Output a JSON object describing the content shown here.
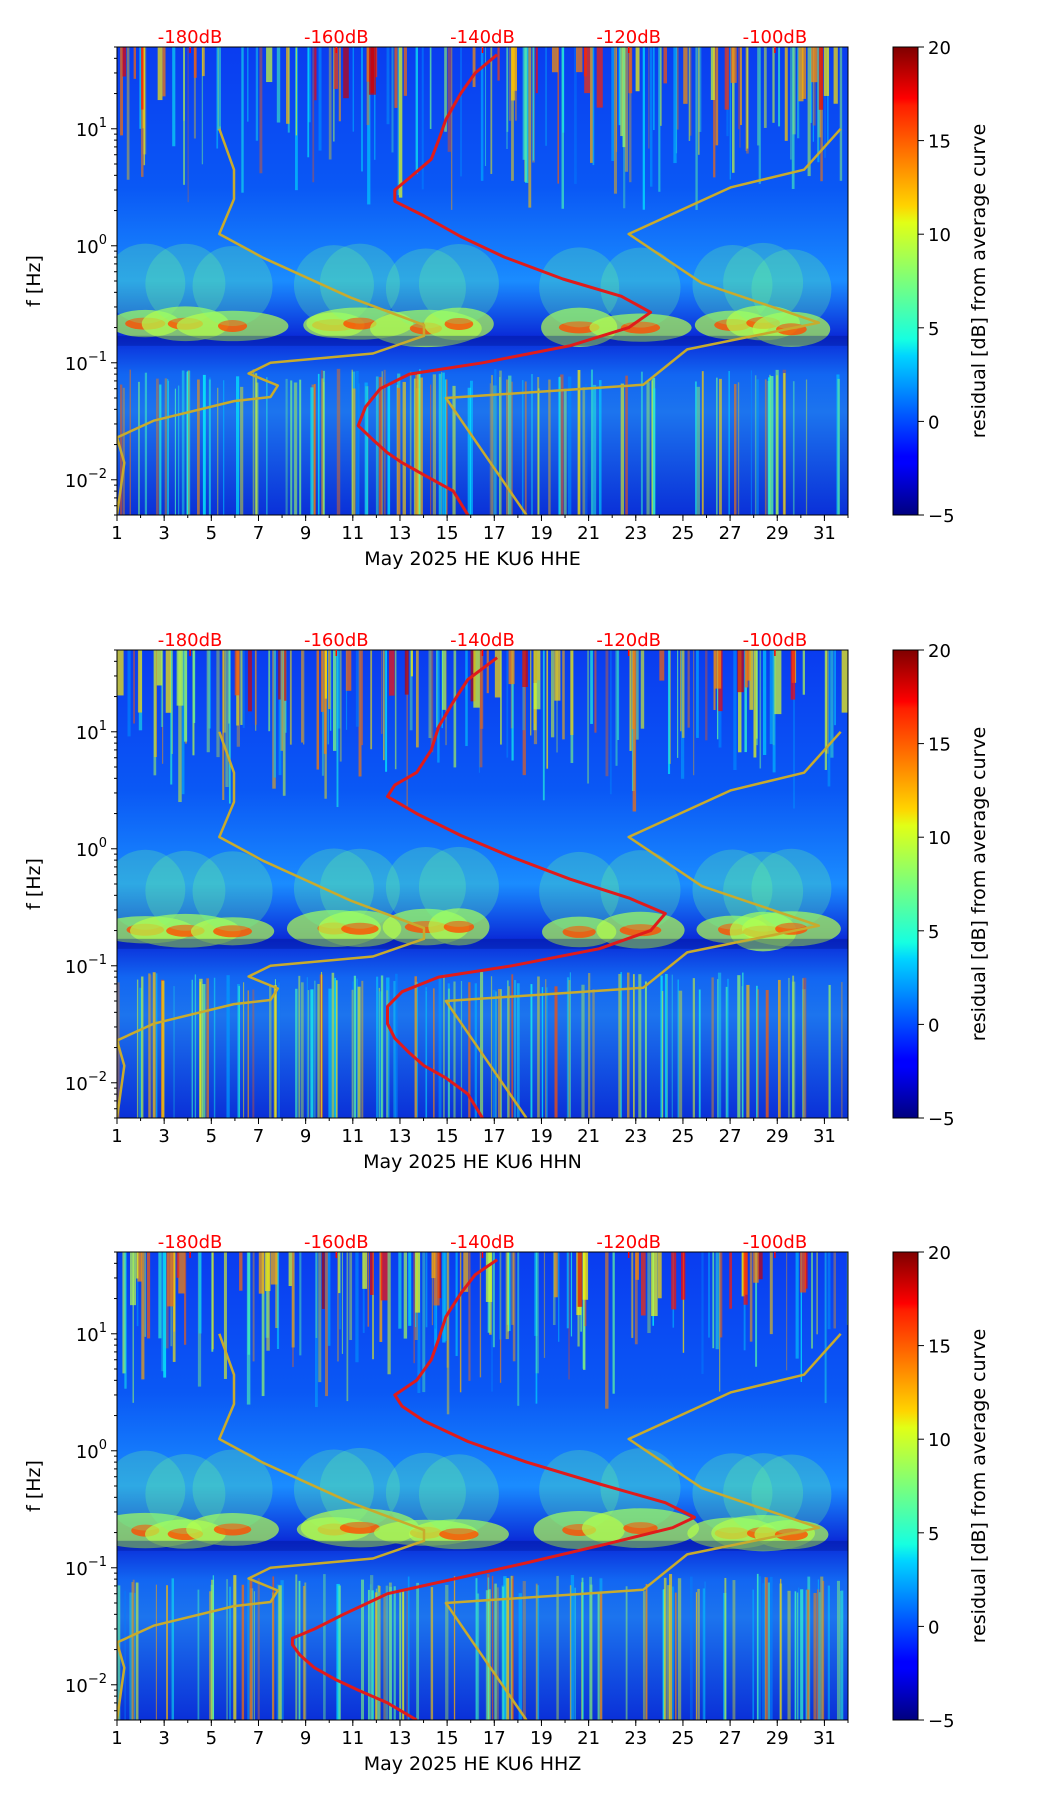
{
  "chart_data": [
    {
      "type": "heatmap",
      "station": "HE KU6",
      "channel": "HHE",
      "xlabel": "May 2025 HE KU6  HHE",
      "ylabel": "f [Hz]",
      "colorbar_label": "residual [dB] from average curve",
      "colorbar_ticks": [
        -5,
        0,
        5,
        10,
        15,
        20
      ],
      "colorbar_range": [
        -5,
        20
      ],
      "colormap": "jet",
      "x_range_days": [
        1,
        32
      ],
      "x_ticks": [
        "1",
        "3",
        "5",
        "7",
        "9",
        "11",
        "13",
        "15",
        "17",
        "19",
        "21",
        "23",
        "25",
        "27",
        "29",
        "31"
      ],
      "y_range_hz": [
        0.005,
        50
      ],
      "y_ticks": [
        {
          "value": 0.01,
          "base": "10",
          "exp": "−2"
        },
        {
          "value": 0.1,
          "base": "10",
          "exp": "−1"
        },
        {
          "value": 1,
          "base": "10",
          "exp": "0"
        },
        {
          "value": 10,
          "base": "10",
          "exp": "1"
        }
      ],
      "top_db_ticks": [
        "-180dB",
        "-160dB",
        "-140dB",
        "-120dB",
        "-100dB"
      ],
      "top_db_range": [
        -190,
        -90
      ],
      "series": [
        {
          "name": "low noise model",
          "color": "#c8ab2d",
          "points_db_hz": [
            [
              -190,
              0.005
            ],
            [
              -189,
              0.014
            ],
            [
              -190,
              0.023
            ],
            [
              -185,
              0.032
            ],
            [
              -174,
              0.047
            ],
            [
              -169,
              0.051
            ],
            [
              -168,
              0.064
            ],
            [
              -172,
              0.081
            ],
            [
              -169,
              0.1
            ],
            [
              -155,
              0.12
            ],
            [
              -148,
              0.17
            ],
            [
              -148,
              0.21
            ],
            [
              -158,
              0.36
            ],
            [
              -170,
              0.79
            ],
            [
              -176,
              1.26
            ],
            [
              -174,
              2.51
            ],
            [
              -174,
              4.47
            ],
            [
              -176,
              10
            ]
          ]
        },
        {
          "name": "high noise model",
          "color": "#c8ab2d",
          "points_db_hz": [
            [
              -134,
              0.005
            ],
            [
              -145,
              0.05
            ],
            [
              -118,
              0.065
            ],
            [
              -112,
              0.13
            ],
            [
              -94,
              0.22
            ],
            [
              -110,
              0.48
            ],
            [
              -120,
              1.26
            ],
            [
              -106,
              3.16
            ],
            [
              -96,
              4.47
            ],
            [
              -91,
              10
            ]
          ]
        },
        {
          "name": "average curve",
          "color": "#e01b1b",
          "points_db_hz": [
            [
              -142,
              0.005
            ],
            [
              -144,
              0.008
            ],
            [
              -148,
              0.011
            ],
            [
              -151,
              0.014
            ],
            [
              -153,
              0.017
            ],
            [
              -155,
              0.022
            ],
            [
              -157,
              0.029
            ],
            [
              -156,
              0.042
            ],
            [
              -154,
              0.06
            ],
            [
              -150,
              0.08
            ],
            [
              -140,
              0.1
            ],
            [
              -128,
              0.14
            ],
            [
              -120,
              0.2
            ],
            [
              -117,
              0.27
            ],
            [
              -121,
              0.37
            ],
            [
              -129,
              0.52
            ],
            [
              -137,
              0.8
            ],
            [
              -143,
              1.2
            ],
            [
              -148,
              1.8
            ],
            [
              -152,
              2.4
            ],
            [
              -152,
              3.0
            ],
            [
              -150,
              3.8
            ],
            [
              -147,
              5.5
            ],
            [
              -146,
              8
            ],
            [
              -145,
              12
            ],
            [
              -143,
              20
            ],
            [
              -141,
              30
            ],
            [
              -138,
              43
            ]
          ]
        }
      ]
    },
    {
      "type": "heatmap",
      "station": "HE KU6",
      "channel": "HHN",
      "xlabel": "May 2025 HE KU6  HHN",
      "ylabel": "f [Hz]",
      "colorbar_label": "residual [dB] from average curve",
      "colorbar_ticks": [
        -5,
        0,
        5,
        10,
        15,
        20
      ],
      "colorbar_range": [
        -5,
        20
      ],
      "colormap": "jet",
      "x_range_days": [
        1,
        32
      ],
      "x_ticks": [
        "1",
        "3",
        "5",
        "7",
        "9",
        "11",
        "13",
        "15",
        "17",
        "19",
        "21",
        "23",
        "25",
        "27",
        "29",
        "31"
      ],
      "y_range_hz": [
        0.005,
        50
      ],
      "y_ticks": [
        {
          "value": 0.01,
          "base": "10",
          "exp": "−2"
        },
        {
          "value": 0.1,
          "base": "10",
          "exp": "−1"
        },
        {
          "value": 1,
          "base": "10",
          "exp": "0"
        },
        {
          "value": 10,
          "base": "10",
          "exp": "1"
        }
      ],
      "top_db_ticks": [
        "-180dB",
        "-160dB",
        "-140dB",
        "-120dB",
        "-100dB"
      ],
      "top_db_range": [
        -190,
        -90
      ],
      "series": [
        {
          "name": "low noise model",
          "color": "#c8ab2d",
          "points_db_hz": [
            [
              -190,
              0.005
            ],
            [
              -189,
              0.014
            ],
            [
              -190,
              0.023
            ],
            [
              -185,
              0.032
            ],
            [
              -174,
              0.047
            ],
            [
              -169,
              0.051
            ],
            [
              -168,
              0.064
            ],
            [
              -172,
              0.081
            ],
            [
              -169,
              0.1
            ],
            [
              -155,
              0.12
            ],
            [
              -148,
              0.17
            ],
            [
              -148,
              0.21
            ],
            [
              -158,
              0.36
            ],
            [
              -170,
              0.79
            ],
            [
              -176,
              1.26
            ],
            [
              -174,
              2.51
            ],
            [
              -174,
              4.47
            ],
            [
              -176,
              10
            ]
          ]
        },
        {
          "name": "high noise model",
          "color": "#c8ab2d",
          "points_db_hz": [
            [
              -134,
              0.005
            ],
            [
              -145,
              0.05
            ],
            [
              -118,
              0.065
            ],
            [
              -112,
              0.13
            ],
            [
              -94,
              0.22
            ],
            [
              -110,
              0.48
            ],
            [
              -120,
              1.26
            ],
            [
              -106,
              3.16
            ],
            [
              -96,
              4.47
            ],
            [
              -91,
              10
            ]
          ]
        },
        {
          "name": "average curve",
          "color": "#e01b1b",
          "points_db_hz": [
            [
              -140,
              0.005
            ],
            [
              -142,
              0.008
            ],
            [
              -145,
              0.011
            ],
            [
              -148,
              0.014
            ],
            [
              -150,
              0.018
            ],
            [
              -152,
              0.024
            ],
            [
              -153,
              0.032
            ],
            [
              -153,
              0.045
            ],
            [
              -151,
              0.06
            ],
            [
              -146,
              0.08
            ],
            [
              -136,
              0.1
            ],
            [
              -124,
              0.14
            ],
            [
              -117,
              0.2
            ],
            [
              -115,
              0.28
            ],
            [
              -120,
              0.38
            ],
            [
              -128,
              0.55
            ],
            [
              -136,
              0.85
            ],
            [
              -143,
              1.3
            ],
            [
              -149,
              2.0
            ],
            [
              -153,
              2.8
            ],
            [
              -152,
              3.5
            ],
            [
              -149,
              4.5
            ],
            [
              -147,
              7
            ],
            [
              -146,
              11
            ],
            [
              -144,
              18
            ],
            [
              -142,
              28
            ],
            [
              -138,
              43
            ]
          ]
        }
      ]
    },
    {
      "type": "heatmap",
      "station": "HE KU6",
      "channel": "HHZ",
      "xlabel": "May 2025 HE KU6  HHZ",
      "ylabel": "f [Hz]",
      "colorbar_label": "residual [dB] from average curve",
      "colorbar_ticks": [
        -5,
        0,
        5,
        10,
        15,
        20
      ],
      "colorbar_range": [
        -5,
        20
      ],
      "colormap": "jet",
      "x_range_days": [
        1,
        32
      ],
      "x_ticks": [
        "1",
        "3",
        "5",
        "7",
        "9",
        "11",
        "13",
        "15",
        "17",
        "19",
        "21",
        "23",
        "25",
        "27",
        "29",
        "31"
      ],
      "y_range_hz": [
        0.005,
        50
      ],
      "y_ticks": [
        {
          "value": 0.01,
          "base": "10",
          "exp": "−2"
        },
        {
          "value": 0.1,
          "base": "10",
          "exp": "−1"
        },
        {
          "value": 1,
          "base": "10",
          "exp": "0"
        },
        {
          "value": 10,
          "base": "10",
          "exp": "1"
        }
      ],
      "top_db_ticks": [
        "-180dB",
        "-160dB",
        "-140dB",
        "-120dB",
        "-100dB"
      ],
      "top_db_range": [
        -190,
        -90
      ],
      "series": [
        {
          "name": "low noise model",
          "color": "#c8ab2d",
          "points_db_hz": [
            [
              -190,
              0.005
            ],
            [
              -189,
              0.014
            ],
            [
              -190,
              0.023
            ],
            [
              -185,
              0.032
            ],
            [
              -174,
              0.047
            ],
            [
              -169,
              0.051
            ],
            [
              -168,
              0.064
            ],
            [
              -172,
              0.081
            ],
            [
              -169,
              0.1
            ],
            [
              -155,
              0.12
            ],
            [
              -148,
              0.17
            ],
            [
              -148,
              0.21
            ],
            [
              -158,
              0.36
            ],
            [
              -170,
              0.79
            ],
            [
              -176,
              1.26
            ],
            [
              -174,
              2.51
            ],
            [
              -174,
              4.47
            ],
            [
              -176,
              10
            ]
          ]
        },
        {
          "name": "high noise model",
          "color": "#c8ab2d",
          "points_db_hz": [
            [
              -134,
              0.005
            ],
            [
              -145,
              0.05
            ],
            [
              -118,
              0.065
            ],
            [
              -112,
              0.13
            ],
            [
              -94,
              0.22
            ],
            [
              -110,
              0.48
            ],
            [
              -120,
              1.26
            ],
            [
              -106,
              3.16
            ],
            [
              -96,
              4.47
            ],
            [
              -91,
              10
            ]
          ]
        },
        {
          "name": "average curve",
          "color": "#e01b1b",
          "points_db_hz": [
            [
              -149,
              0.005
            ],
            [
              -153,
              0.007
            ],
            [
              -157,
              0.009
            ],
            [
              -160,
              0.011
            ],
            [
              -163,
              0.014
            ],
            [
              -165,
              0.018
            ],
            [
              -166,
              0.022
            ],
            [
              -166,
              0.025
            ],
            [
              -163,
              0.03
            ],
            [
              -159,
              0.04
            ],
            [
              -153,
              0.06
            ],
            [
              -144,
              0.08
            ],
            [
              -134,
              0.11
            ],
            [
              -123,
              0.16
            ],
            [
              -114,
              0.22
            ],
            [
              -111,
              0.27
            ],
            [
              -115,
              0.36
            ],
            [
              -124,
              0.52
            ],
            [
              -134,
              0.8
            ],
            [
              -142,
              1.2
            ],
            [
              -148,
              1.8
            ],
            [
              -151,
              2.4
            ],
            [
              -152,
              3.0
            ],
            [
              -149,
              4.0
            ],
            [
              -147,
              6
            ],
            [
              -146,
              9
            ],
            [
              -145,
              14
            ],
            [
              -143,
              22
            ],
            [
              -141,
              32
            ],
            [
              -138,
              43
            ]
          ]
        }
      ]
    }
  ]
}
